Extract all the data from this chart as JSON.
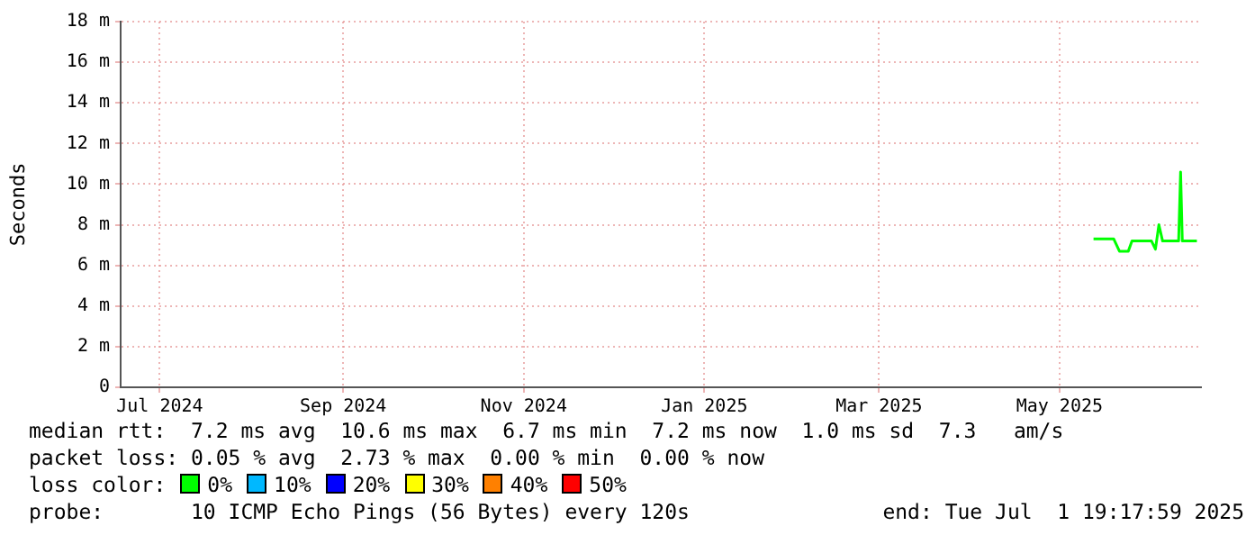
{
  "chart_data": {
    "type": "line",
    "ylabel": "Seconds",
    "x": [
      "2025-05-26T12:00",
      "2025-06-02T08:00",
      "2025-06-04T06:00",
      "2025-06-07T06:00",
      "2025-06-08T12:00",
      "2025-06-15T02:00",
      "2025-06-16T10:00",
      "2025-06-17T14:00",
      "2025-06-18T20:00",
      "2025-06-24T06:00",
      "2025-06-24T22:00",
      "2025-06-25T12:00",
      "2025-06-30T10:00"
    ],
    "series": [
      {
        "color": "#00ff00",
        "values": [
          7.3,
          7.3,
          6.7,
          6.7,
          7.2,
          7.2,
          6.8,
          8.0,
          7.2,
          7.2,
          10.6,
          7.2,
          7.2
        ]
      }
    ],
    "xlim": [
      "2024-07-01T19:18",
      "2025-07-01T19:18"
    ],
    "xticks": [
      {
        "value": "2024-07-15",
        "label": "Jul 2024"
      },
      {
        "value": "2024-09-15",
        "label": "Sep 2024"
      },
      {
        "value": "2024-11-15",
        "label": "Nov 2024"
      },
      {
        "value": "2025-01-15",
        "label": "Jan 2025"
      },
      {
        "value": "2025-03-15",
        "label": "Mar 2025"
      },
      {
        "value": "2025-05-15",
        "label": "May 2025"
      }
    ],
    "ylim": [
      0,
      18
    ],
    "yticks": [
      0,
      {
        "value": 2,
        "label": "2 m"
      },
      {
        "value": 4,
        "label": "4 m"
      },
      {
        "value": 6,
        "label": "6 m"
      },
      {
        "value": 8,
        "label": "8 m"
      },
      {
        "value": 10,
        "label": "10 m"
      },
      {
        "value": 12,
        "label": "12 m"
      },
      {
        "value": 14,
        "label": "14 m"
      },
      {
        "value": 16,
        "label": "16 m"
      },
      {
        "value": 18,
        "label": "18 m"
      }
    ],
    "grid": true,
    "legend": false,
    "marker": "none",
    "line_style": "solid",
    "annotations": [
      "median rtt:  7.2 ms avg  10.6 ms max  6.7 ms min  7.2 ms now  1.0 ms sd  7.3   am/s",
      "packet loss: 0.05 % avg  2.73 % max  0.00 % min  0.00 % now",
      "loss color:",
      "0%",
      "10%",
      "20%",
      "30%",
      "40%",
      "50%",
      "probe:       10 ICMP Echo Pings (56 Bytes) every 120s",
      "end: Tue Jul  1 19:17:59 2025"
    ]
  }
}
